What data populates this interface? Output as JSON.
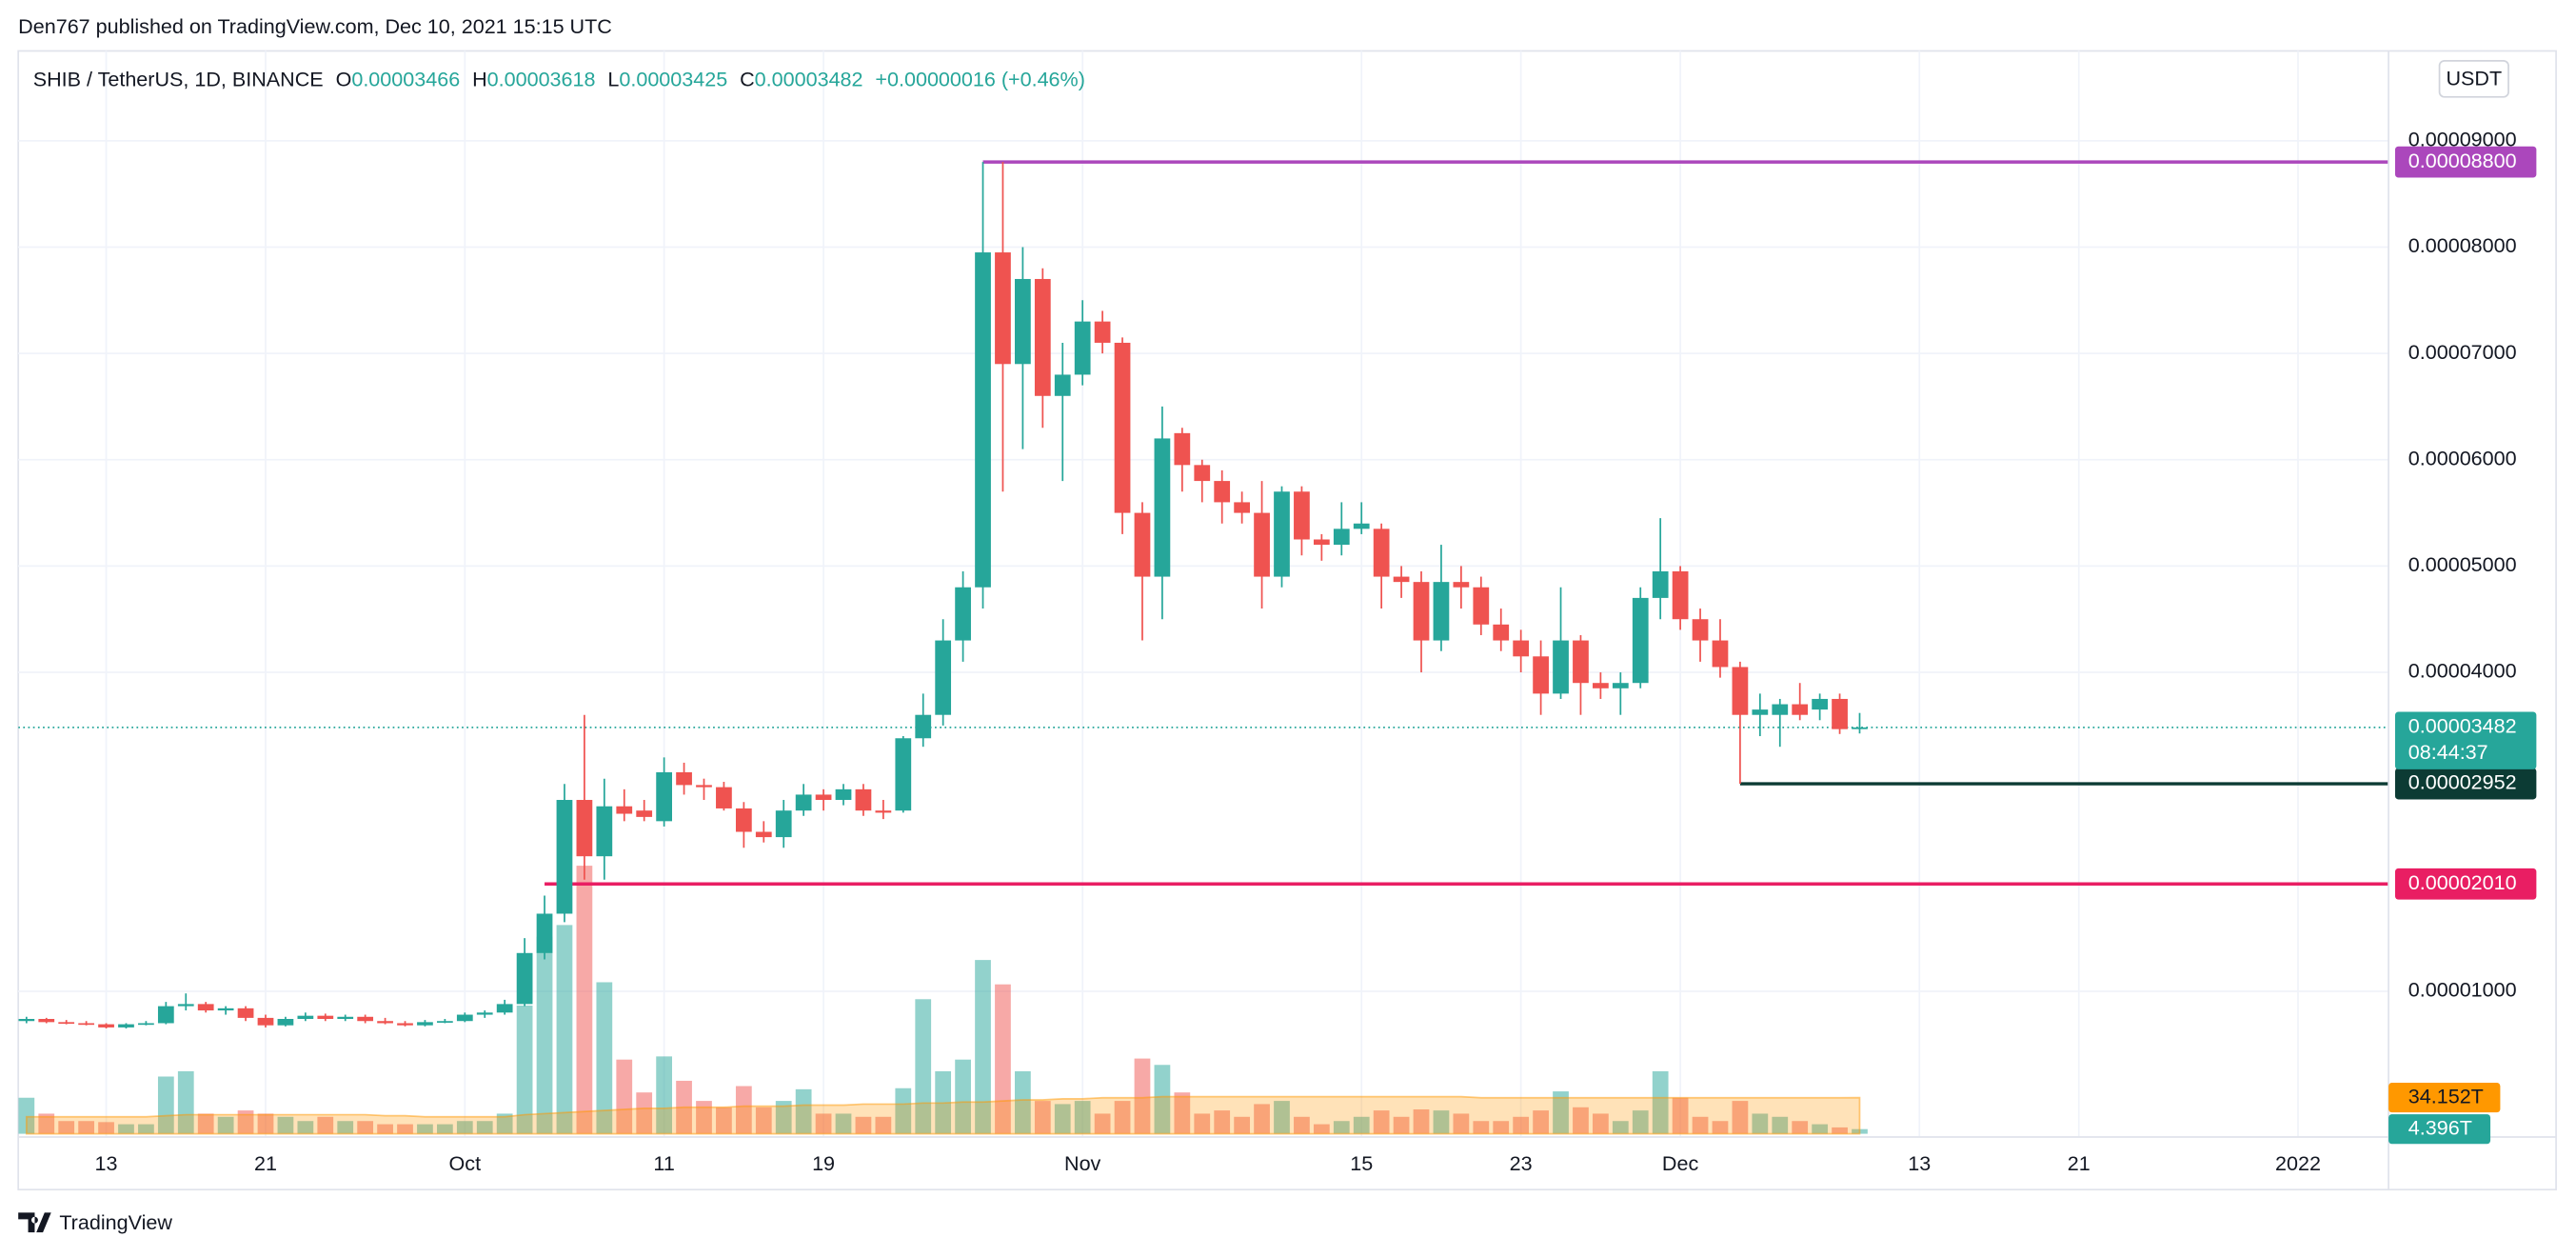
{
  "header": {
    "publisher": "Den767 published on TradingView.com, Dec 10, 2021 15:15 UTC",
    "brand": "TradingView",
    "currency_button": "USDT"
  },
  "legend": {
    "symbol": "SHIB / TetherUS, 1D, BINANCE",
    "o_key": "O",
    "o": "0.00003466",
    "h_key": "H",
    "h": "0.00003618",
    "l_key": "L",
    "l": "0.00003425",
    "c_key": "C",
    "c": "0.00003482",
    "change": "+0.00000016 (+0.46%)"
  },
  "chart_data": {
    "type": "candlestick",
    "up_color": "#26a69a",
    "down_color": "#ef5350",
    "grid": true,
    "x": [
      "2021-09-09",
      "2021-09-10",
      "2021-09-11",
      "2021-09-12",
      "2021-09-13",
      "2021-09-14",
      "2021-09-15",
      "2021-09-16",
      "2021-09-17",
      "2021-09-18",
      "2021-09-19",
      "2021-09-20",
      "2021-09-21",
      "2021-09-22",
      "2021-09-23",
      "2021-09-24",
      "2021-09-25",
      "2021-09-26",
      "2021-09-27",
      "2021-09-28",
      "2021-09-29",
      "2021-09-30",
      "2021-10-01",
      "2021-10-02",
      "2021-10-03",
      "2021-10-04",
      "2021-10-05",
      "2021-10-06",
      "2021-10-07",
      "2021-10-08",
      "2021-10-09",
      "2021-10-10",
      "2021-10-11",
      "2021-10-12",
      "2021-10-13",
      "2021-10-14",
      "2021-10-15",
      "2021-10-16",
      "2021-10-17",
      "2021-10-18",
      "2021-10-19",
      "2021-10-20",
      "2021-10-21",
      "2021-10-22",
      "2021-10-23",
      "2021-10-24",
      "2021-10-25",
      "2021-10-26",
      "2021-10-27",
      "2021-10-28",
      "2021-10-29",
      "2021-10-30",
      "2021-10-31",
      "2021-11-01",
      "2021-11-02",
      "2021-11-03",
      "2021-11-04",
      "2021-11-05",
      "2021-11-06",
      "2021-11-07",
      "2021-11-08",
      "2021-11-09",
      "2021-11-10",
      "2021-11-11",
      "2021-11-12",
      "2021-11-13",
      "2021-11-14",
      "2021-11-15",
      "2021-11-16",
      "2021-11-17",
      "2021-11-18",
      "2021-11-19",
      "2021-11-20",
      "2021-11-21",
      "2021-11-22",
      "2021-11-23",
      "2021-11-24",
      "2021-11-25",
      "2021-11-26",
      "2021-11-27",
      "2021-11-28",
      "2021-11-29",
      "2021-11-30",
      "2021-12-01",
      "2021-12-02",
      "2021-12-03",
      "2021-12-04",
      "2021-12-05",
      "2021-12-06",
      "2021-12-07",
      "2021-12-08",
      "2021-12-09",
      "2021-12-10"
    ],
    "open": [
      7.2e-06,
      7.4e-06,
      7.1e-06,
      7e-06,
      6.9e-06,
      6.6e-06,
      6.9e-06,
      7e-06,
      8.6e-06,
      8.8e-06,
      8.2e-06,
      8.4e-06,
      7.5e-06,
      6.8e-06,
      7.4e-06,
      7.7e-06,
      7.4e-06,
      7.6e-06,
      7.2e-06,
      7e-06,
      6.8e-06,
      7.1e-06,
      7.2e-06,
      7.8e-06,
      8e-06,
      8.8e-06,
      1.36e-05,
      1.73e-05,
      2.8e-05,
      2.27e-05,
      2.74e-05,
      2.7e-05,
      2.6e-05,
      3.06e-05,
      2.94e-05,
      2.92e-05,
      2.72e-05,
      2.5e-05,
      2.45e-05,
      2.7e-05,
      2.85e-05,
      2.8e-05,
      2.9e-05,
      2.7e-05,
      2.7e-05,
      3.38e-05,
      3.6e-05,
      4.3e-05,
      4.8e-05,
      7.95e-05,
      6.9e-05,
      7.7e-05,
      6.6e-05,
      6.8e-05,
      7.3e-05,
      7.1e-05,
      5.5e-05,
      4.9e-05,
      6.25e-05,
      5.95e-05,
      5.8e-05,
      5.6e-05,
      5.5e-05,
      4.9e-05,
      5.7e-05,
      5.25e-05,
      5.2e-05,
      5.35e-05,
      5.35e-05,
      4.9e-05,
      4.85e-05,
      4.3e-05,
      4.85e-05,
      4.8e-05,
      4.45e-05,
      4.3e-05,
      4.15e-05,
      3.8e-05,
      4.3e-05,
      3.9e-05,
      3.85e-05,
      3.9e-05,
      4.7e-05,
      4.95e-05,
      4.5e-05,
      4.3e-05,
      4.05e-05,
      3.6e-05,
      3.6e-05,
      3.7e-05,
      3.65e-05,
      3.75e-05,
      3.466e-05
    ],
    "high": [
      7.6e-06,
      7.5e-06,
      7.3e-06,
      7.2e-06,
      7e-06,
      7e-06,
      7.2e-06,
      9e-06,
      9.8e-06,
      9e-06,
      8.6e-06,
      8.6e-06,
      7.8e-06,
      7.6e-06,
      8e-06,
      7.9e-06,
      7.8e-06,
      7.8e-06,
      7.5e-06,
      7.2e-06,
      7.3e-06,
      7.4e-06,
      8e-06,
      8.2e-06,
      9.2e-06,
      1.5e-05,
      1.9e-05,
      2.95e-05,
      3.6e-05,
      3e-05,
      2.9e-05,
      2.8e-05,
      3.2e-05,
      3.15e-05,
      3e-05,
      2.97e-05,
      2.78e-05,
      2.6e-05,
      2.8e-05,
      2.95e-05,
      2.9e-05,
      2.95e-05,
      2.95e-05,
      2.8e-05,
      3.4e-05,
      3.8e-05,
      4.5e-05,
      4.95e-05,
      8.8e-05,
      8.8e-05,
      8e-05,
      7.8e-05,
      7.1e-05,
      7.5e-05,
      7.4e-05,
      7.15e-05,
      5.6e-05,
      6.5e-05,
      6.3e-05,
      6e-05,
      5.9e-05,
      5.7e-05,
      5.8e-05,
      5.75e-05,
      5.75e-05,
      5.3e-05,
      5.6e-05,
      5.6e-05,
      5.4e-05,
      5e-05,
      4.95e-05,
      5.2e-05,
      5e-05,
      4.9e-05,
      4.6e-05,
      4.4e-05,
      4.3e-05,
      4.8e-05,
      4.35e-05,
      4e-05,
      4e-05,
      4.8e-05,
      5.45e-05,
      5e-05,
      4.6e-05,
      4.5e-05,
      4.1e-05,
      3.8e-05,
      3.75e-05,
      3.9e-05,
      3.8e-05,
      3.8e-05,
      3.618e-05
    ],
    "low": [
      7e-06,
      7e-06,
      6.9e-06,
      6.8e-06,
      6.5e-06,
      6.5e-06,
      6.8e-06,
      6.9e-06,
      8.2e-06,
      8e-06,
      7.8e-06,
      7.2e-06,
      6.6e-06,
      6.7e-06,
      7.2e-06,
      7.2e-06,
      7.2e-06,
      7e-06,
      6.9e-06,
      6.7e-06,
      6.7e-06,
      7e-06,
      7.1e-06,
      7.5e-06,
      7.8e-06,
      8.6e-06,
      1.3e-05,
      1.65e-05,
      2.05e-05,
      2.05e-05,
      2.6e-05,
      2.6e-05,
      2.55e-05,
      2.85e-05,
      2.8e-05,
      2.7e-05,
      2.35e-05,
      2.4e-05,
      2.35e-05,
      2.65e-05,
      2.7e-05,
      2.75e-05,
      2.65e-05,
      2.62e-05,
      2.68e-05,
      3.3e-05,
      3.5e-05,
      4.1e-05,
      4.6e-05,
      5.7e-05,
      6.1e-05,
      6.3e-05,
      5.8e-05,
      6.7e-05,
      7e-05,
      5.3e-05,
      4.3e-05,
      4.5e-05,
      5.7e-05,
      5.6e-05,
      5.4e-05,
      5.4e-05,
      4.6e-05,
      4.8e-05,
      5.1e-05,
      5.05e-05,
      5.1e-05,
      5.3e-05,
      4.6e-05,
      4.7e-05,
      4e-05,
      4.2e-05,
      4.6e-05,
      4.35e-05,
      4.2e-05,
      4e-05,
      3.6e-05,
      3.75e-05,
      3.6e-05,
      3.75e-05,
      3.6e-05,
      3.85e-05,
      4.5e-05,
      4.4e-05,
      4.1e-05,
      3.95e-05,
      2.952e-05,
      3.4e-05,
      3.3e-05,
      3.55e-05,
      3.55e-05,
      3.42e-05,
      3.425e-05
    ],
    "close": [
      7.4e-06,
      7.1e-06,
      7e-06,
      6.9e-06,
      6.6e-06,
      6.9e-06,
      7e-06,
      8.6e-06,
      8.8e-06,
      8.2e-06,
      8.4e-06,
      7.5e-06,
      6.8e-06,
      7.4e-06,
      7.7e-06,
      7.4e-06,
      7.6e-06,
      7.2e-06,
      7e-06,
      6.8e-06,
      7.1e-06,
      7.2e-06,
      7.8e-06,
      8e-06,
      8.8e-06,
      1.36e-05,
      1.73e-05,
      2.8e-05,
      2.27e-05,
      2.74e-05,
      2.67e-05,
      2.64e-05,
      3.06e-05,
      2.94e-05,
      2.92e-05,
      2.72e-05,
      2.5e-05,
      2.45e-05,
      2.7e-05,
      2.85e-05,
      2.8e-05,
      2.9e-05,
      2.7e-05,
      2.68e-05,
      3.38e-05,
      3.6e-05,
      4.3e-05,
      4.8e-05,
      7.95e-05,
      6.9e-05,
      7.7e-05,
      6.6e-05,
      6.8e-05,
      7.3e-05,
      7.1e-05,
      5.5e-05,
      4.9e-05,
      6.2e-05,
      5.95e-05,
      5.8e-05,
      5.6e-05,
      5.5e-05,
      4.9e-05,
      5.7e-05,
      5.25e-05,
      5.2e-05,
      5.35e-05,
      5.4e-05,
      4.9e-05,
      4.85e-05,
      4.3e-05,
      4.85e-05,
      4.8e-05,
      4.45e-05,
      4.3e-05,
      4.15e-05,
      3.8e-05,
      4.3e-05,
      3.9e-05,
      3.85e-05,
      3.9e-05,
      4.7e-05,
      4.95e-05,
      4.5e-05,
      4.3e-05,
      4.05e-05,
      3.6e-05,
      3.65e-05,
      3.7e-05,
      3.6e-05,
      3.75e-05,
      3.466e-05,
      3.482e-05
    ],
    "xlim": [
      "2021-09-08",
      "2022-01-08"
    ],
    "xticks": [
      {
        "value": "2021-09-13",
        "label": "13"
      },
      {
        "value": "2021-09-21",
        "label": "21"
      },
      {
        "value": "2021-10-01",
        "label": "Oct"
      },
      {
        "value": "2021-10-11",
        "label": "11"
      },
      {
        "value": "2021-10-19",
        "label": "19"
      },
      {
        "value": "2021-11-01",
        "label": "Nov"
      },
      {
        "value": "2021-11-15",
        "label": "15"
      },
      {
        "value": "2021-11-23",
        "label": "23"
      },
      {
        "value": "2021-12-01",
        "label": "Dec"
      },
      {
        "value": "2021-12-13",
        "label": "13"
      },
      {
        "value": "2021-12-21",
        "label": "21"
      },
      {
        "value": "2022-01-01",
        "label": "2022"
      }
    ],
    "ylim": [
      -3.71e-06,
      9.845e-05
    ],
    "yticks": [
      {
        "value": 1e-05,
        "label": "0.00001000"
      },
      {
        "value": 4e-05,
        "label": "0.00004000"
      },
      {
        "value": 5e-05,
        "label": "0.00005000"
      },
      {
        "value": 6e-05,
        "label": "0.00006000"
      },
      {
        "value": 7e-05,
        "label": "0.00007000"
      },
      {
        "value": 8e-05,
        "label": "0.00008000"
      },
      {
        "value": 9e-05,
        "label": "0.00009000"
      }
    ],
    "levels": [
      {
        "value": 8.8e-05,
        "label": "0.00008800",
        "color": "#ab47bc",
        "from": "2021-10-27"
      },
      {
        "value": 2.952e-05,
        "label": "0.00002952",
        "color": "#0c3b34",
        "from": "2021-12-04"
      },
      {
        "value": 2.01e-05,
        "label": "0.00002010",
        "color": "#e91e63",
        "from": "2021-10-05"
      }
    ],
    "last_price": {
      "value": 3.482e-05,
      "label": "0.00003482",
      "countdown": "08:44:37",
      "color": "#26a69a"
    },
    "volume": {
      "ylim": [
        0,
        1022
      ],
      "last_label": "4.396T",
      "values": [
        34,
        19,
        12,
        12,
        11,
        9,
        9,
        54,
        59,
        19,
        16,
        22,
        19,
        16,
        12,
        16,
        12,
        12,
        9,
        9,
        9,
        9,
        12,
        12,
        19,
        121,
        186,
        197,
        253,
        143,
        70,
        39,
        73,
        50,
        31,
        25,
        45,
        25,
        31,
        42,
        19,
        19,
        16,
        16,
        43,
        127,
        59,
        70,
        164,
        141,
        59,
        31,
        28,
        31,
        19,
        31,
        71,
        65,
        39,
        19,
        22,
        16,
        28,
        31,
        16,
        9,
        12,
        16,
        22,
        16,
        23,
        22,
        19,
        12,
        12,
        16,
        22,
        40,
        25,
        19,
        12,
        22,
        59,
        34,
        16,
        12,
        31,
        19,
        16,
        12,
        9,
        6,
        4.396
      ]
    },
    "volume_ma": {
      "color": "#ff9800",
      "last_label": "34.152T",
      "values": [
        16,
        16,
        16,
        16,
        16,
        16,
        16,
        17,
        18,
        18,
        18,
        18,
        18,
        18,
        18,
        18,
        18,
        18,
        17,
        17,
        16,
        16,
        16,
        16,
        16,
        18,
        19,
        20,
        21,
        22,
        23,
        24,
        24,
        25,
        25,
        25,
        26,
        26,
        26,
        27,
        27,
        27,
        28,
        28,
        28,
        29,
        29,
        30,
        30,
        31,
        32,
        32,
        33,
        33,
        34,
        34,
        34,
        35,
        35,
        35,
        35,
        35,
        35,
        35,
        35,
        35,
        35,
        35,
        35,
        35,
        35,
        35,
        35,
        34,
        34,
        34,
        34,
        34,
        34,
        34,
        34,
        34,
        34,
        34,
        34,
        34,
        34,
        34,
        34,
        34,
        34,
        34,
        34.152
      ]
    }
  }
}
